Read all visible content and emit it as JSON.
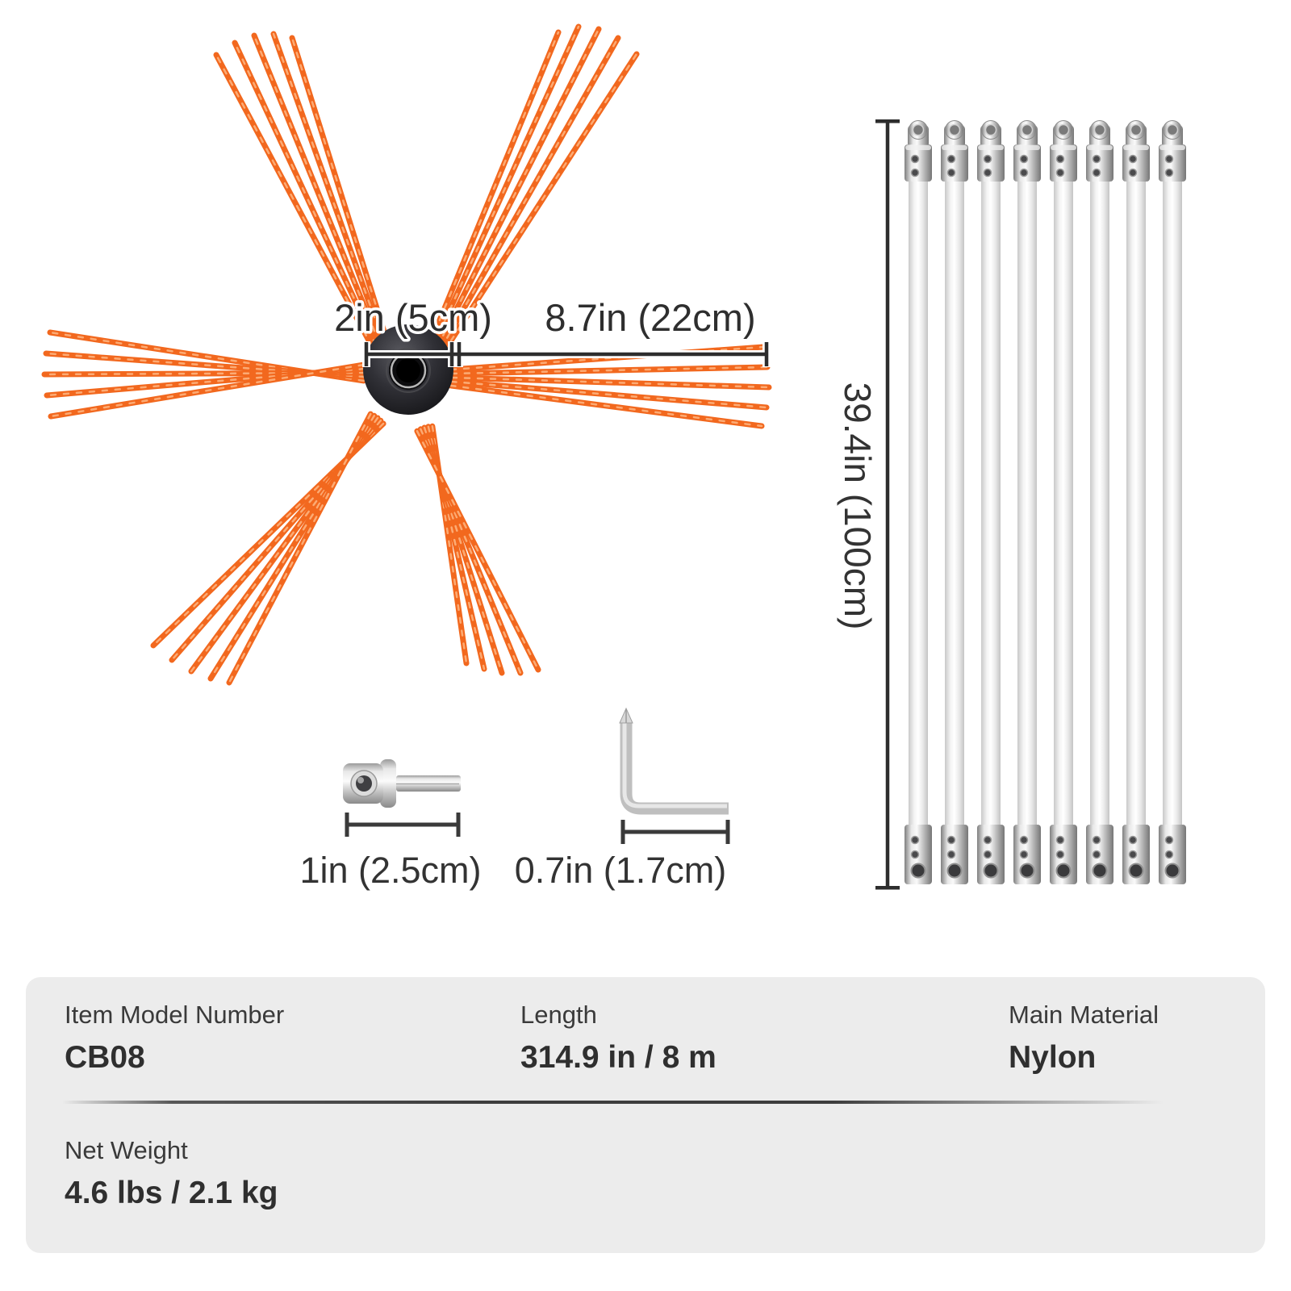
{
  "diagram": {
    "brush": {
      "hub_dim": "2in (5cm)",
      "bristle_dim": "8.7in (22cm)"
    },
    "rods": {
      "count": 8,
      "length_dim": "39.4in (100cm)"
    },
    "adapter": {
      "length_dim": "1in (2.5cm)"
    },
    "wrench": {
      "length_dim": "0.7in (1.7cm)"
    }
  },
  "specs": {
    "model": {
      "label": "Item Model Number",
      "value": "CB08"
    },
    "length": {
      "label": "Length",
      "value": "314.9 in / 8 m"
    },
    "material": {
      "label": "Main Material",
      "value": "Nylon"
    },
    "weight": {
      "label": "Net Weight",
      "value": "4.6 lbs / 2.1 kg"
    }
  },
  "colors": {
    "bristle": "#f2681e",
    "bristle_highlight": "#fcab74",
    "dim_line": "#2e2e2e",
    "card_bg": "#ececec",
    "text": "#333333"
  }
}
